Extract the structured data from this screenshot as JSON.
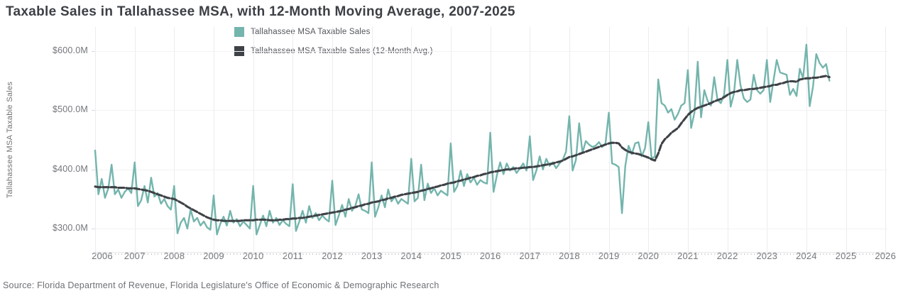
{
  "title": "Taxable Sales in Tallahassee MSA, with 12-Month Moving Average, 2007-2025",
  "source": "Source: Florida Department of Revenue, Florida Legislature's Office of Economic & Demographic Research",
  "colors": {
    "series_monthly": "#74b5ad",
    "series_moving_avg": "#3e4247",
    "title_text": "#3c3f44",
    "axis_text": "#73767b",
    "gridline": "#ececf0"
  },
  "legend": [
    {
      "label": "Tallahassee MSA Taxable Sales",
      "color": "#74b5ad"
    },
    {
      "label": "Tallahassee MSA Taxable Sales (12-Month Avg.)",
      "color": "#3e4247"
    }
  ],
  "y_axis": {
    "title": "Tallahassee MSA Taxable Sales",
    "ticks": [
      {
        "label": "$600.0M",
        "value": 600
      },
      {
        "label": "$500.0M",
        "value": 500
      },
      {
        "label": "$400.0M",
        "value": 400
      },
      {
        "label": "$300.0M",
        "value": 300
      }
    ]
  },
  "x_axis": {
    "ticks": [
      "2006",
      "2007",
      "2008",
      "2009",
      "2010",
      "2011",
      "2012",
      "2013",
      "2014",
      "2015",
      "2016",
      "2017",
      "2018",
      "2019",
      "2020",
      "2021",
      "2022",
      "2023",
      "2024",
      "2025",
      "2026"
    ]
  },
  "chart_data": {
    "type": "line",
    "title": "Taxable Sales in Tallahassee MSA, with 12-Month Moving Average, 2007-2025",
    "ylabel": "Tallahassee MSA Taxable Sales",
    "unit": "USD millions",
    "frequency": "monthly",
    "start_month": "2006-12",
    "end_month": "2025-07",
    "x_range_years": [
      2006,
      2026
    ],
    "ylim": [
      260,
      640
    ],
    "grid": true,
    "legend_position": "top-center",
    "series": [
      {
        "name": "Tallahassee MSA Taxable Sales",
        "color": "#74b5ad",
        "dashed": false,
        "values": [
          432,
          358,
          384,
          352,
          368,
          408,
          358,
          366,
          352,
          362,
          368,
          360,
          412,
          338,
          348,
          372,
          344,
          386,
          354,
          360,
          342,
          350,
          338,
          332,
          372,
          292,
          310,
          318,
          300,
          332,
          312,
          318,
          305,
          312,
          302,
          298,
          356,
          290,
          308,
          320,
          305,
          330,
          310,
          316,
          304,
          312,
          306,
          300,
          372,
          290,
          306,
          322,
          304,
          330,
          310,
          318,
          306,
          314,
          308,
          304,
          375,
          296,
          312,
          330,
          310,
          338,
          318,
          326,
          314,
          322,
          316,
          312,
          381,
          306,
          322,
          340,
          320,
          350,
          330,
          338,
          358,
          332,
          330,
          326,
          412,
          320,
          336,
          356,
          336,
          366,
          346,
          354,
          342,
          350,
          346,
          342,
          418,
          346,
          352,
          408,
          348,
          376,
          360,
          368,
          356,
          364,
          360,
          356,
          444,
          362,
          372,
          398,
          372,
          392,
          378,
          386,
          374,
          382,
          378,
          376,
          462,
          362,
          390,
          412,
          392,
          410,
          398,
          404,
          394,
          402,
          410,
          398,
          456,
          382,
          398,
          422,
          400,
          418,
          406,
          412,
          402,
          410,
          416,
          430,
          490,
          398,
          416,
          478,
          428,
          448,
          442,
          438,
          440,
          446,
          438,
          444,
          496,
          410,
          408,
          404,
          326,
          406,
          440,
          426,
          444,
          446,
          422,
          436,
          480,
          418,
          422,
          552,
          512,
          508,
          496,
          502,
          484,
          494,
          508,
          512,
          568,
          470,
          496,
          582,
          488,
          534,
          516,
          508,
          556,
          518,
          512,
          526,
          585,
          506,
          528,
          585,
          542,
          520,
          514,
          518,
          560,
          534,
          528,
          534,
          585,
          514,
          550,
          585,
          564,
          562,
          560,
          526,
          536,
          524,
          570,
          554,
          611,
          507,
          540,
          595,
          580,
          572,
          578,
          550
        ]
      },
      {
        "name": "Tallahassee MSA Taxable Sales (12-Month Avg.)",
        "color": "#3e4247",
        "dashed": true,
        "values": [
          371,
          370,
          370,
          370,
          370,
          370,
          370,
          369,
          369,
          369,
          368,
          368,
          368,
          367,
          366,
          365,
          364,
          362,
          360,
          358,
          356,
          354,
          352,
          351,
          350,
          347,
          344,
          341,
          337,
          334,
          331,
          328,
          325,
          322,
          319,
          317,
          315,
          314,
          314,
          313,
          313,
          313,
          313,
          313,
          313,
          314,
          314,
          314,
          314,
          315,
          315,
          315,
          315,
          314,
          314,
          314,
          315,
          315,
          316,
          316,
          317,
          317,
          318,
          318,
          319,
          320,
          321,
          322,
          323,
          324,
          325,
          326,
          327,
          328,
          329,
          330,
          332,
          333,
          335,
          336,
          338,
          339,
          341,
          342,
          344,
          345,
          346,
          348,
          349,
          351,
          352,
          354,
          355,
          357,
          358,
          359,
          360,
          361,
          362,
          364,
          365,
          367,
          368,
          370,
          371,
          373,
          374,
          376,
          377,
          378,
          380,
          381,
          383,
          384,
          386,
          387,
          389,
          390,
          392,
          393,
          395,
          396,
          397,
          398,
          399,
          400,
          400,
          401,
          402,
          402,
          403,
          403,
          404,
          404,
          405,
          406,
          407,
          408,
          409,
          410,
          412,
          413,
          415,
          418,
          421,
          422,
          424,
          426,
          428,
          430,
          432,
          434,
          436,
          438,
          440,
          442,
          444,
          445,
          445,
          444,
          437,
          433,
          430,
          428,
          427,
          426,
          424,
          422,
          420,
          417,
          415,
          427,
          443,
          451,
          456,
          462,
          466,
          470,
          478,
          485,
          492,
          497,
          501,
          504,
          506,
          508,
          510,
          512,
          515,
          517,
          519,
          522,
          526,
          529,
          531,
          532,
          534,
          534,
          535,
          536,
          536,
          537,
          538,
          539,
          540,
          541,
          543,
          543,
          545,
          546,
          548,
          549,
          549,
          548,
          552,
          553,
          554,
          554,
          555,
          555,
          556,
          557,
          558,
          556
        ]
      }
    ]
  }
}
